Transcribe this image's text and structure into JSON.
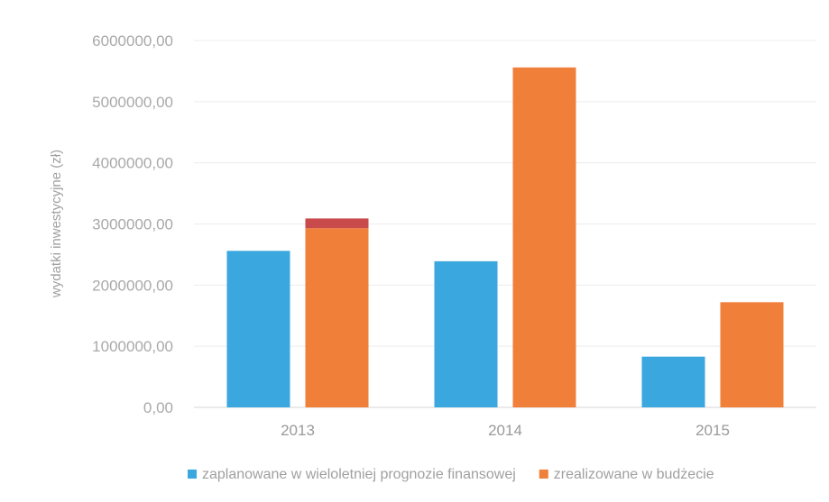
{
  "chart_data": {
    "type": "bar",
    "categories": [
      "2013",
      "2014",
      "2015"
    ],
    "series": [
      {
        "name": "zaplanowane w wieloletniej prognozie finansowej",
        "color": "#3ba7df",
        "values": [
          2560000,
          2390000,
          830000
        ]
      },
      {
        "name": "zrealizowane w budżecie",
        "color": "#f07f3a",
        "values": [
          2930000,
          5560000,
          1720000
        ]
      }
    ],
    "stacked_extra": {
      "series_index": 1,
      "category_index": 0,
      "value": 160000,
      "color": "#c84a4a"
    },
    "ylabel": "wydatki inwestycyjne (zł)",
    "xlabel": "",
    "ylim": [
      0,
      6000000
    ],
    "yticks": [
      "0,00",
      "1000000,00",
      "2000000,00",
      "3000000,00",
      "4000000,00",
      "5000000,00",
      "6000000,00"
    ],
    "grid": true,
    "legend_position": "bottom"
  }
}
